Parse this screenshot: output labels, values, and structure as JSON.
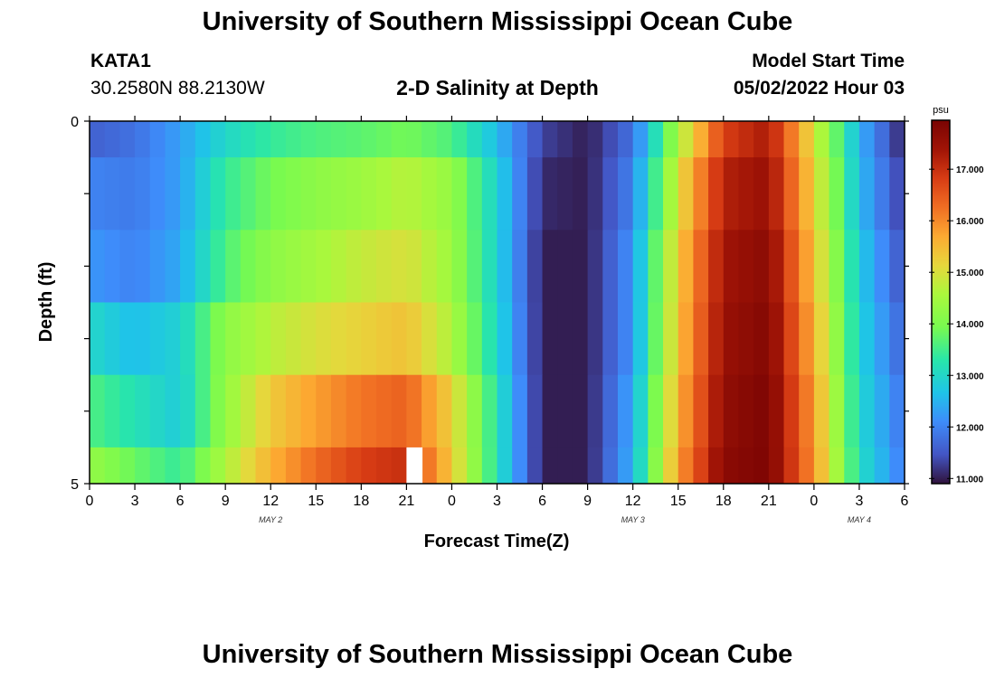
{
  "header": {
    "title": "University of Southern Mississippi Ocean Cube",
    "station_id": "KATA1",
    "coords": "30.2580N  88.2130W",
    "plot_title": "2-D Salinity at Depth",
    "start_label": "Model Start Time",
    "start_time": "05/02/2022 Hour 03"
  },
  "footer": {
    "title": "University of Southern Mississippi Ocean Cube"
  },
  "chart_data": {
    "type": "heatmap",
    "xlabel": "Forecast Time(Z)",
    "ylabel": "Depth (ft)",
    "x_tick_labels": [
      "0",
      "3",
      "6",
      "9",
      "12",
      "15",
      "18",
      "21",
      "0",
      "3",
      "6",
      "9",
      "12",
      "15",
      "18",
      "21",
      "0",
      "3",
      "6"
    ],
    "date_labels": [
      {
        "label": "MAY 2",
        "at_hour": 12
      },
      {
        "label": "MAY 3",
        "at_hour": 36
      },
      {
        "label": "MAY 4",
        "at_hour": 51
      }
    ],
    "xlim_hours": [
      0,
      54
    ],
    "ylim": [
      0,
      5
    ],
    "y_tick_labels": [
      "0",
      "5"
    ],
    "colorbar": {
      "unit": "psu",
      "range": [
        10.9,
        17.95
      ],
      "ticks": [
        "11.000",
        "12.000",
        "13.000",
        "14.000",
        "15.000",
        "16.000",
        "17.000"
      ],
      "tick_values": [
        11,
        12,
        13,
        14,
        15,
        16,
        17
      ]
    },
    "layer_depths_ft": [
      0,
      0.5,
      1.5,
      2.5,
      3.5,
      4.5
    ],
    "hours": [
      0,
      3,
      6,
      9,
      12,
      15,
      18,
      21,
      24,
      27,
      30,
      33,
      36,
      39,
      42,
      45,
      48,
      51,
      54
    ],
    "salinity": [
      [
        11.6,
        11.8,
        12.3,
        13.0,
        13.4,
        13.6,
        13.7,
        13.9,
        13.6,
        12.6,
        11.3,
        11.0,
        11.8,
        14.5,
        16.8,
        17.3,
        15.0,
        12.5,
        11.0
      ],
      [
        12.0,
        11.9,
        12.3,
        13.4,
        13.9,
        14.2,
        14.4,
        14.7,
        14.3,
        12.9,
        11.1,
        11.0,
        12.0,
        15.0,
        17.2,
        17.5,
        15.2,
        12.6,
        11.2
      ],
      [
        12.2,
        12.0,
        12.4,
        13.6,
        14.2,
        14.5,
        14.8,
        15.0,
        14.4,
        12.9,
        11.0,
        11.0,
        12.2,
        15.3,
        17.4,
        17.7,
        15.4,
        12.8,
        11.4
      ],
      [
        13.0,
        12.6,
        12.9,
        14.2,
        14.7,
        15.0,
        15.2,
        15.4,
        14.6,
        13.0,
        11.0,
        11.0,
        12.2,
        15.4,
        17.5,
        17.8,
        15.6,
        12.9,
        11.6
      ],
      [
        13.6,
        13.2,
        12.8,
        14.3,
        15.3,
        15.8,
        16.2,
        16.4,
        15.2,
        13.2,
        11.0,
        11.0,
        12.4,
        15.6,
        17.6,
        17.9,
        15.8,
        13.0,
        11.8
      ],
      [
        14.3,
        13.8,
        13.4,
        14.6,
        15.6,
        16.3,
        16.8,
        17.0,
        15.3,
        13.2,
        11.0,
        11.0,
        12.5,
        15.8,
        17.7,
        17.9,
        15.9,
        13.1,
        11.9
      ]
    ],
    "missing": [
      {
        "hour": 21.5,
        "layer": 5
      }
    ]
  }
}
